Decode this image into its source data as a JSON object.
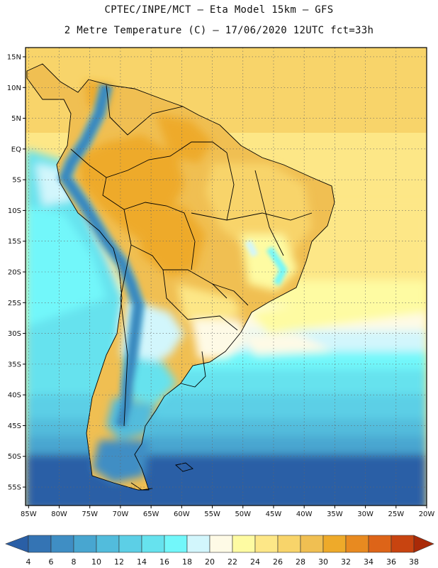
{
  "header": {
    "line1": "CPTEC/INPE/MCT –  Eta Model 15km – GFS",
    "line2": "2 Metre Temperature (C) – 17/06/2020 12UTC fct=33h"
  },
  "map": {
    "lat_labels": [
      "15N",
      "10N",
      "5N",
      "EQ",
      "5S",
      "10S",
      "15S",
      "20S",
      "25S",
      "30S",
      "35S",
      "40S",
      "45S",
      "50S",
      "55S"
    ],
    "lat_values": [
      15,
      10,
      5,
      0,
      -5,
      -10,
      -15,
      -20,
      -25,
      -30,
      -35,
      -40,
      -45,
      -50,
      -55
    ],
    "lon_labels": [
      "85W",
      "80W",
      "75W",
      "70W",
      "65W",
      "60W",
      "55W",
      "50W",
      "45W",
      "40W",
      "35W",
      "30W",
      "25W",
      "20W"
    ],
    "lon_values": [
      -85,
      -80,
      -75,
      -70,
      -65,
      -60,
      -55,
      -50,
      -45,
      -40,
      -35,
      -30,
      -25,
      -20
    ],
    "extent": {
      "lon_min": -85.5,
      "lon_max": -20,
      "lat_min": -58,
      "lat_max": 16.5
    }
  },
  "colorbar": {
    "ticks": [
      "4",
      "6",
      "8",
      "10",
      "12",
      "14",
      "16",
      "18",
      "20",
      "22",
      "24",
      "26",
      "28",
      "30",
      "32",
      "34",
      "36",
      "38"
    ],
    "colors": [
      "#2a5fa6",
      "#3474b4",
      "#3f8ec4",
      "#48a6d0",
      "#52bcdc",
      "#5ccfe6",
      "#66e2ee",
      "#72f7fa",
      "#d2f6fc",
      "#fefae6",
      "#fefba2",
      "#fde787",
      "#f8d46a",
      "#f0bf52",
      "#eeaa2a",
      "#e88a20",
      "#dd6418",
      "#c84410",
      "#a92a08"
    ]
  }
}
